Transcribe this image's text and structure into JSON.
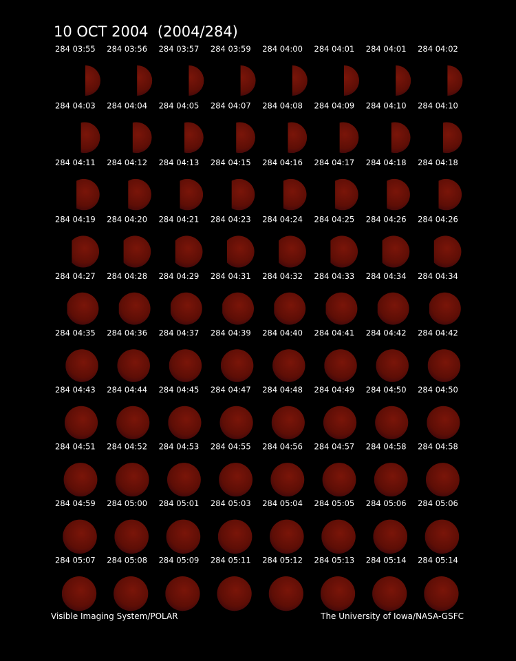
{
  "header": {
    "title": "10 OCT 2004  (2004/284)"
  },
  "frames": {
    "rows": [
      [
        "284 03:55",
        "284 03:56",
        "284 03:57",
        "284 03:59",
        "284 04:00",
        "284 04:01",
        "284 04:01",
        "284 04:02"
      ],
      [
        "284 04:03",
        "284 04:04",
        "284 04:05",
        "284 04:07",
        "284 04:08",
        "284 04:09",
        "284 04:10",
        "284 04:10"
      ],
      [
        "284 04:11",
        "284 04:12",
        "284 04:13",
        "284 04:15",
        "284 04:16",
        "284 04:17",
        "284 04:18",
        "284 04:18"
      ],
      [
        "284 04:19",
        "284 04:20",
        "284 04:21",
        "284 04:23",
        "284 04:24",
        "284 04:25",
        "284 04:26",
        "284 04:26"
      ],
      [
        "284 04:27",
        "284 04:28",
        "284 04:29",
        "284 04:31",
        "284 04:32",
        "284 04:33",
        "284 04:34",
        "284 04:34"
      ],
      [
        "284 04:35",
        "284 04:36",
        "284 04:37",
        "284 04:39",
        "284 04:40",
        "284 04:41",
        "284 04:42",
        "284 04:42"
      ],
      [
        "284 04:43",
        "284 04:44",
        "284 04:45",
        "284 04:47",
        "284 04:48",
        "284 04:49",
        "284 04:50",
        "284 04:50"
      ],
      [
        "284 04:51",
        "284 04:52",
        "284 04:53",
        "284 04:55",
        "284 04:56",
        "284 04:57",
        "284 04:58",
        "284 04:58"
      ],
      [
        "284 04:59",
        "284 05:00",
        "284 05:01",
        "284 05:03",
        "284 05:04",
        "284 05:05",
        "284 05:06",
        "284 05:06"
      ],
      [
        "284 05:07",
        "284 05:08",
        "284 05:09",
        "284 05:11",
        "284 05:12",
        "284 05:13",
        "284 05:14",
        "284 05:14"
      ]
    ]
  },
  "footer": {
    "left": "Visible Imaging System/POLAR",
    "right": "The University of Iowa/NASA-GSFC"
  }
}
